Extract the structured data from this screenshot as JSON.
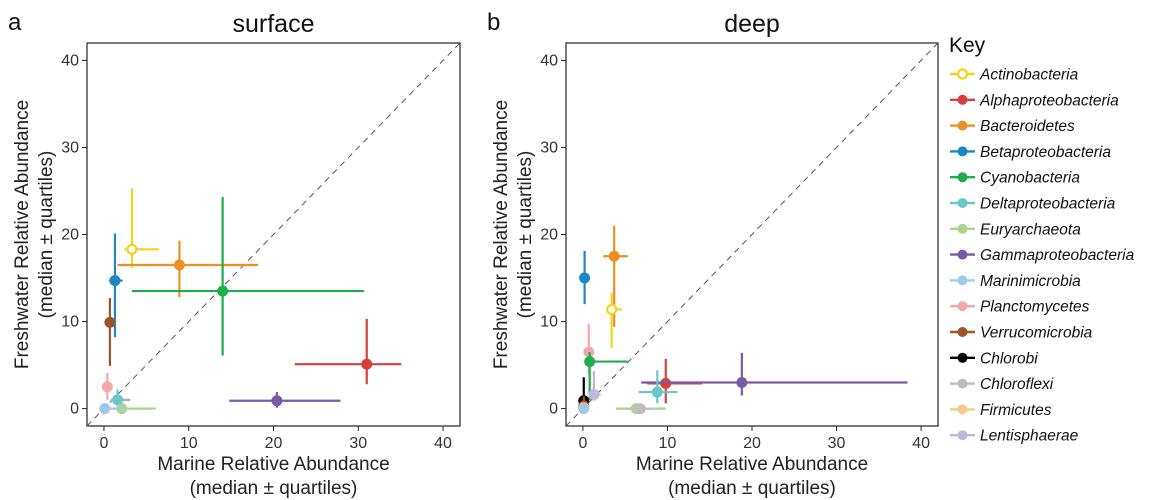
{
  "colors": {
    "Actinobacteria": "#f5d21b",
    "Alphaproteobacteria": "#d6403b",
    "Bacteroidetes": "#ee8f24",
    "Betaproteobacteria": "#1f86c3",
    "Cyanobacteria": "#1fae4b",
    "Deltaproteobacteria": "#6cc7c8",
    "Euryarchaeota": "#a9d58f",
    "Gammaproteobacteria": "#7a5aa6",
    "Marinimicrobia": "#9ecae8",
    "Planctomycetes": "#f4a8a8",
    "Verrucomicrobia": "#a0522d",
    "Chlorobi": "#000000",
    "Chloroflexi": "#bdbdbd",
    "Firmicutes": "#fbc987",
    "Lentisphaerae": "#c3b6dd"
  },
  "key": {
    "title": "Key",
    "items": [
      "Actinobacteria",
      "Alphaproteobacteria",
      "Bacteroidetes",
      "Betaproteobacteria",
      "Cyanobacteria",
      "Deltaproteobacteria",
      "Euryarchaeota",
      "Gammaproteobacteria",
      "Marinimicrobia",
      "Planctomycetes",
      "Verrucomicrobia",
      "Chlorobi",
      "Chloroflexi",
      "Firmicutes",
      "Lentisphaerae"
    ],
    "open_marker": [
      "Actinobacteria"
    ]
  },
  "chart_data": [
    {
      "type": "scatter",
      "panel": "a",
      "title": "surface",
      "xlabel": [
        "Marine Relative Abundance",
        "(median ± quartiles)"
      ],
      "ylabel": [
        "Freshwater Relative Abundance",
        "(median ± quartiles)"
      ],
      "xlim": [
        -2,
        42
      ],
      "ylim": [
        -2,
        42
      ],
      "xticks": [
        0,
        10,
        20,
        30,
        40
      ],
      "yticks": [
        0,
        10,
        20,
        30,
        40
      ],
      "diagonal": "dashed y = x",
      "grid": false,
      "points": [
        {
          "name": "Actinobacteria",
          "x": 3.3,
          "xq": [
            2.4,
            6.5
          ],
          "y": 18.3,
          "yq": [
            16.2,
            25.3
          ],
          "open": true
        },
        {
          "name": "Bacteroidetes",
          "x": 8.9,
          "xq": [
            1.6,
            18.2
          ],
          "y": 16.5,
          "yq": [
            12.8,
            19.3
          ]
        },
        {
          "name": "Betaproteobacteria",
          "x": 1.3,
          "xq": [
            0.6,
            2.2
          ],
          "y": 14.7,
          "yq": [
            8.2,
            20.1
          ]
        },
        {
          "name": "Cyanobacteria",
          "x": 14.0,
          "xq": [
            3.3,
            30.7
          ],
          "y": 13.5,
          "yq": [
            6.1,
            24.3
          ]
        },
        {
          "name": "Verrucomicrobia",
          "x": 0.7,
          "xq": [
            0.3,
            1.1
          ],
          "y": 9.9,
          "yq": [
            4.9,
            12.7
          ]
        },
        {
          "name": "Alphaproteobacteria",
          "x": 31.0,
          "xq": [
            22.5,
            35.1
          ],
          "y": 5.1,
          "yq": [
            2.8,
            10.3
          ]
        },
        {
          "name": "Planctomycetes",
          "x": 0.4,
          "xq": [
            0.1,
            0.8
          ],
          "y": 2.5,
          "yq": [
            1.0,
            4.1
          ]
        },
        {
          "name": "Deltaproteobacteria",
          "x": 1.6,
          "xq": [
            0.8,
            3.1
          ],
          "y": 1.0,
          "yq": [
            0.3,
            2.2
          ]
        },
        {
          "name": "Gammaproteobacteria",
          "x": 20.4,
          "xq": [
            14.8,
            27.9
          ],
          "y": 0.9,
          "yq": [
            0.1,
            1.9
          ]
        },
        {
          "name": "Euryarchaeota",
          "x": 2.1,
          "xq": [
            0.4,
            6.1
          ],
          "y": 0.0,
          "yq": [
            0.0,
            0.4
          ]
        },
        {
          "name": "Marinimicrobia",
          "x": 0.1,
          "xq": [
            0.0,
            2.6
          ],
          "y": 0.0,
          "yq": [
            0.0,
            0.3
          ]
        }
      ]
    },
    {
      "type": "scatter",
      "panel": "b",
      "title": "deep",
      "xlabel": [
        "Marine Relative Abundance",
        "(median ± quartiles)"
      ],
      "ylabel": [
        "Freshwater Relative Abundance",
        "(median ± quartiles)"
      ],
      "xlim": [
        -2,
        42
      ],
      "ylim": [
        -2,
        42
      ],
      "xticks": [
        0,
        10,
        20,
        30,
        40
      ],
      "yticks": [
        0,
        10,
        20,
        30,
        40
      ],
      "diagonal": "dashed y = x",
      "grid": false,
      "points": [
        {
          "name": "Bacteroidetes",
          "x": 3.7,
          "xq": [
            2.4,
            5.3
          ],
          "y": 17.5,
          "yq": [
            9.4,
            21.0
          ]
        },
        {
          "name": "Betaproteobacteria",
          "x": 0.2,
          "xq": [
            0.0,
            0.6
          ],
          "y": 15.0,
          "yq": [
            12.0,
            18.1
          ]
        },
        {
          "name": "Actinobacteria",
          "x": 3.4,
          "xq": [
            2.9,
            4.6
          ],
          "y": 11.4,
          "yq": [
            7.0,
            13.3
          ],
          "open": true
        },
        {
          "name": "Planctomycetes",
          "x": 0.7,
          "xq": [
            0.3,
            1.1
          ],
          "y": 6.5,
          "yq": [
            4.0,
            9.7
          ]
        },
        {
          "name": "Cyanobacteria",
          "x": 0.8,
          "xq": [
            0.3,
            5.3
          ],
          "y": 5.4,
          "yq": [
            1.0,
            6.5
          ]
        },
        {
          "name": "Alphaproteobacteria",
          "x": 9.8,
          "xq": [
            7.6,
            14.1
          ],
          "y": 2.9,
          "yq": [
            0.6,
            5.7
          ]
        },
        {
          "name": "Gammaproteobacteria",
          "x": 18.8,
          "xq": [
            6.9,
            38.4
          ],
          "y": 3.0,
          "yq": [
            1.5,
            6.4
          ]
        },
        {
          "name": "Deltaproteobacteria",
          "x": 8.8,
          "xq": [
            6.6,
            11.2
          ],
          "y": 1.9,
          "yq": [
            0.6,
            4.4
          ]
        },
        {
          "name": "Lentisphaerae",
          "x": 1.3,
          "xq": [
            0.8,
            2.1
          ],
          "y": 1.6,
          "yq": [
            0.9,
            4.3
          ]
        },
        {
          "name": "Chlorobi",
          "x": 0.1,
          "xq": [
            0.0,
            0.3
          ],
          "y": 0.9,
          "yq": [
            0.3,
            3.6
          ]
        },
        {
          "name": "Verrucomicrobia",
          "x": 0.1,
          "xq": [
            0.0,
            0.3
          ],
          "y": 0.3,
          "yq": [
            0.0,
            1.4
          ]
        },
        {
          "name": "Euryarchaeota",
          "x": 6.3,
          "xq": [
            3.9,
            9.8
          ],
          "y": 0.0,
          "yq": [
            0.0,
            0.3
          ]
        },
        {
          "name": "Chloroflexi",
          "x": 6.8,
          "xq": [
            5.0,
            8.2
          ],
          "y": 0.0,
          "yq": [
            0.0,
            0.2
          ]
        },
        {
          "name": "Firmicutes",
          "x": 0.1,
          "xq": [
            0.0,
            0.8
          ],
          "y": 0.1,
          "yq": [
            0.0,
            0.6
          ]
        },
        {
          "name": "Marinimicrobia",
          "x": 0.1,
          "xq": [
            0.0,
            0.4
          ],
          "y": 0.0,
          "yq": [
            0.0,
            0.2
          ]
        }
      ]
    }
  ]
}
